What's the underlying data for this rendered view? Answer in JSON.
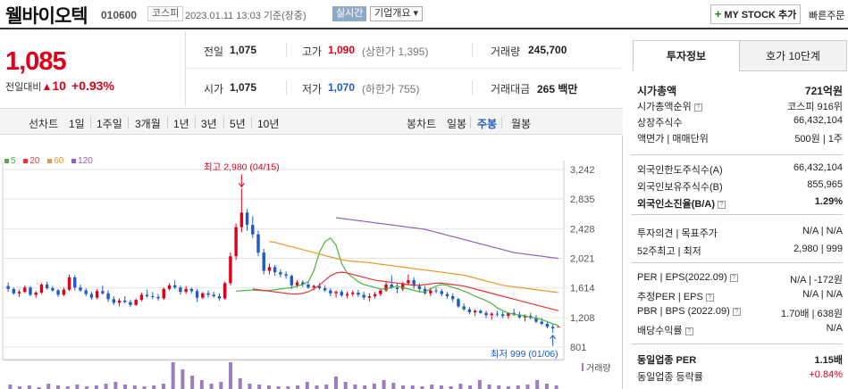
{
  "header": {
    "company_name": "웰바이오텍",
    "code": "010600",
    "market": "코스피",
    "datetime": "2023.01.11 13:03",
    "basis": "기준(장중)",
    "realtime_label": "실시간",
    "company_overview_label": "기업개요 ▾",
    "mystock_label": "MY STOCK 추가",
    "mystock_plus": "+",
    "quick_label": "빠른주문"
  },
  "price": {
    "current": "1,085",
    "diff_label": "전일대비",
    "diff_arrow": "▲",
    "diff_value": "10",
    "diff_pct": "+0.93%"
  },
  "stats": {
    "prev_close_label": "전일",
    "prev_close": "1,075",
    "high_label": "고가",
    "high": "1,090",
    "upper_limit": "(상한가 1,395)",
    "volume_label": "거래량",
    "volume": "245,700",
    "open_label": "시가",
    "open": "1,075",
    "low_label": "저가",
    "low": "1,070",
    "lower_limit": "(하한가 755)",
    "amount_label": "거래대금",
    "amount": "265 백만"
  },
  "period_bar": {
    "line_chart_label": "선차트",
    "line_periods": [
      "1일",
      "1주일",
      "3개월",
      "1년",
      "3년",
      "5년",
      "10년"
    ],
    "candle_label": "봉차트",
    "candle_periods": [
      "일봉",
      "주봉",
      "월봉"
    ],
    "selected_candle": "주봉"
  },
  "chart_data": {
    "type": "candlestick",
    "interval": "weekly",
    "legend": [
      "5",
      "20",
      "60",
      "120"
    ],
    "legend_colors": [
      "#49b43c",
      "#e8353a",
      "#f0952c",
      "#8d5fc2"
    ],
    "y_ticks": [
      3242,
      2835,
      2428,
      2021,
      1614,
      1208,
      801
    ],
    "ylim": [
      801,
      3242
    ],
    "annotations": {
      "high": "최고 2,980 (04/15)",
      "low": "최저 999 (01/06)"
    },
    "volume_label": "거래량",
    "ohlc": [
      [
        1640,
        1690,
        1560,
        1600
      ],
      [
        1600,
        1620,
        1520,
        1540
      ],
      [
        1540,
        1590,
        1490,
        1560
      ],
      [
        1560,
        1650,
        1540,
        1620
      ],
      [
        1620,
        1640,
        1500,
        1520
      ],
      [
        1520,
        1570,
        1480,
        1550
      ],
      [
        1550,
        1680,
        1530,
        1660
      ],
      [
        1660,
        1700,
        1590,
        1610
      ],
      [
        1610,
        1640,
        1560,
        1580
      ],
      [
        1580,
        1600,
        1490,
        1520
      ],
      [
        1520,
        1620,
        1500,
        1590
      ],
      [
        1590,
        1800,
        1570,
        1760
      ],
      [
        1760,
        1790,
        1580,
        1620
      ],
      [
        1620,
        1660,
        1560,
        1580
      ],
      [
        1580,
        1610,
        1500,
        1530
      ],
      [
        1530,
        1560,
        1450,
        1480
      ],
      [
        1480,
        1600,
        1460,
        1570
      ],
      [
        1570,
        1650,
        1520,
        1540
      ],
      [
        1540,
        1580,
        1420,
        1460
      ],
      [
        1460,
        1500,
        1380,
        1410
      ],
      [
        1410,
        1470,
        1360,
        1440
      ],
      [
        1440,
        1500,
        1400,
        1420
      ],
      [
        1420,
        1450,
        1350,
        1380
      ],
      [
        1380,
        1470,
        1370,
        1450
      ],
      [
        1450,
        1550,
        1430,
        1520
      ],
      [
        1520,
        1590,
        1480,
        1500
      ],
      [
        1500,
        1560,
        1460,
        1490
      ],
      [
        1490,
        1530,
        1440,
        1470
      ],
      [
        1470,
        1620,
        1450,
        1600
      ],
      [
        1600,
        1680,
        1580,
        1650
      ],
      [
        1650,
        1720,
        1600,
        1620
      ],
      [
        1620,
        1650,
        1520,
        1560
      ],
      [
        1560,
        1640,
        1530,
        1600
      ],
      [
        1600,
        1620,
        1540,
        1570
      ],
      [
        1570,
        1600,
        1420,
        1480
      ],
      [
        1480,
        1560,
        1460,
        1540
      ],
      [
        1540,
        1580,
        1480,
        1520
      ],
      [
        1520,
        1560,
        1480,
        1500
      ],
      [
        1500,
        1540,
        1440,
        1470
      ],
      [
        1470,
        1700,
        1450,
        1680
      ],
      [
        1680,
        2100,
        1650,
        2050
      ],
      [
        2050,
        2500,
        2000,
        2450
      ],
      [
        2450,
        2980,
        2380,
        2650
      ],
      [
        2650,
        2700,
        2400,
        2480
      ],
      [
        2480,
        2600,
        2300,
        2350
      ],
      [
        2350,
        2400,
        2050,
        2100
      ],
      [
        2100,
        2150,
        1800,
        1850
      ],
      [
        1850,
        1950,
        1800,
        1900
      ],
      [
        1900,
        1930,
        1780,
        1830
      ],
      [
        1830,
        1870,
        1760,
        1800
      ],
      [
        1800,
        1840,
        1740,
        1780
      ],
      [
        1780,
        1800,
        1600,
        1650
      ],
      [
        1650,
        1720,
        1620,
        1690
      ],
      [
        1690,
        1720,
        1630,
        1660
      ],
      [
        1660,
        1700,
        1600,
        1620
      ],
      [
        1620,
        1660,
        1580,
        1640
      ],
      [
        1640,
        1680,
        1590,
        1610
      ],
      [
        1610,
        1650,
        1560,
        1580
      ],
      [
        1580,
        1610,
        1500,
        1540
      ],
      [
        1540,
        1580,
        1480,
        1560
      ],
      [
        1560,
        1590,
        1490,
        1510
      ],
      [
        1510,
        1560,
        1470,
        1530
      ],
      [
        1530,
        1580,
        1500,
        1550
      ],
      [
        1550,
        1590,
        1490,
        1520
      ],
      [
        1520,
        1560,
        1450,
        1480
      ],
      [
        1480,
        1540,
        1430,
        1500
      ],
      [
        1500,
        1560,
        1470,
        1530
      ],
      [
        1530,
        1600,
        1500,
        1580
      ],
      [
        1580,
        1700,
        1560,
        1660
      ],
      [
        1660,
        1790,
        1600,
        1620
      ],
      [
        1620,
        1680,
        1540,
        1600
      ],
      [
        1600,
        1700,
        1570,
        1680
      ],
      [
        1680,
        1800,
        1650,
        1720
      ],
      [
        1720,
        1760,
        1600,
        1640
      ],
      [
        1640,
        1680,
        1560,
        1600
      ],
      [
        1600,
        1640,
        1520,
        1540
      ],
      [
        1540,
        1620,
        1500,
        1580
      ],
      [
        1580,
        1620,
        1540,
        1570
      ],
      [
        1570,
        1600,
        1500,
        1530
      ],
      [
        1530,
        1560,
        1470,
        1500
      ],
      [
        1500,
        1540,
        1420,
        1460
      ],
      [
        1460,
        1480,
        1340,
        1360
      ],
      [
        1360,
        1400,
        1300,
        1320
      ],
      [
        1320,
        1350,
        1250,
        1280
      ],
      [
        1280,
        1320,
        1230,
        1300
      ],
      [
        1300,
        1320,
        1260,
        1270
      ],
      [
        1270,
        1300,
        1200,
        1240
      ],
      [
        1240,
        1280,
        1180,
        1260
      ],
      [
        1260,
        1300,
        1220,
        1250
      ],
      [
        1250,
        1290,
        1200,
        1230
      ],
      [
        1230,
        1280,
        1190,
        1270
      ],
      [
        1270,
        1330,
        1230,
        1250
      ],
      [
        1250,
        1290,
        1190,
        1210
      ],
      [
        1210,
        1250,
        1150,
        1230
      ],
      [
        1230,
        1270,
        1180,
        1200
      ],
      [
        1200,
        1240,
        1130,
        1150
      ],
      [
        1150,
        1200,
        1100,
        1120
      ],
      [
        1120,
        1160,
        1060,
        1080
      ],
      [
        1080,
        1110,
        999,
        1060
      ],
      [
        1075,
        1090,
        1070,
        1085
      ]
    ],
    "ma": {
      "5": [
        1570,
        1575,
        1580,
        1585,
        1580,
        1575,
        1580,
        1590,
        1600,
        1610,
        1620,
        1640,
        1660,
        1700,
        1850,
        2100,
        2250,
        2300,
        2200,
        1950,
        1820,
        1760,
        1700,
        1660,
        1640,
        1620,
        1600,
        1600,
        1620,
        1640,
        1620,
        1600,
        1580,
        1560,
        1560,
        1600,
        1640,
        1660,
        1650,
        1620,
        1600,
        1570,
        1540,
        1500,
        1470,
        1440,
        1400,
        1340,
        1300,
        1270,
        1250,
        1240,
        1230,
        1210,
        1200,
        1180,
        1150,
        1120,
        1100
      ],
      "20": [
        1600,
        1590,
        1580,
        1570,
        1560,
        1550,
        1540,
        1530,
        1530,
        1540,
        1560,
        1600,
        1650,
        1720,
        1780,
        1820,
        1830,
        1820,
        1800,
        1780,
        1760,
        1740,
        1720,
        1710,
        1700,
        1690,
        1680,
        1670,
        1660,
        1650,
        1650,
        1660,
        1670,
        1680,
        1680,
        1670,
        1660,
        1650,
        1640,
        1620,
        1600,
        1580,
        1560,
        1540,
        1520,
        1500,
        1480,
        1460,
        1440,
        1420,
        1400,
        1380,
        1360,
        1340,
        1320,
        1300
      ],
      "60": [
        2250,
        2240,
        2220,
        2200,
        2180,
        2160,
        2140,
        2120,
        2100,
        2080,
        2060,
        2040,
        2020,
        2000,
        1990,
        1980,
        1975,
        1970,
        1960,
        1950,
        1940,
        1930,
        1920,
        1910,
        1900,
        1890,
        1880,
        1870,
        1860,
        1850,
        1840,
        1830,
        1820,
        1810,
        1800,
        1790,
        1770,
        1750,
        1730,
        1710,
        1690,
        1670,
        1650,
        1640,
        1630,
        1620,
        1610,
        1600,
        1590,
        1580,
        1570,
        1560,
        1550
      ],
      "120": [
        2580,
        2570,
        2560,
        2550,
        2540,
        2530,
        2520,
        2510,
        2500,
        2490,
        2480,
        2470,
        2460,
        2450,
        2440,
        2430,
        2420,
        2400,
        2380,
        2360,
        2340,
        2320,
        2300,
        2280,
        2260,
        2240,
        2220,
        2200,
        2180,
        2160,
        2140,
        2120,
        2100,
        2090,
        2080,
        2070,
        2060,
        2050,
        2040,
        2030,
        2020
      ]
    },
    "volume": [
      5,
      3,
      4,
      2,
      6,
      4,
      3,
      5,
      3,
      4,
      6,
      8,
      5,
      4,
      3,
      4,
      6,
      30,
      22,
      15,
      10,
      6,
      8,
      30,
      12,
      6,
      5,
      4,
      3,
      3,
      4,
      8,
      4,
      5,
      14,
      8,
      5,
      4,
      6,
      10,
      7,
      4,
      4,
      3,
      5,
      4,
      3,
      6,
      4,
      10,
      5,
      4,
      3,
      4,
      5,
      10,
      6,
      4
    ]
  },
  "right_panel": {
    "tab_invest": "투자정보",
    "tab_hoga": "호가 10단계",
    "market_cap_label": "시가총액",
    "market_cap": "721억원",
    "market_cap_rank_label": "시가총액순위",
    "market_cap_rank": "코스피 916위",
    "shares_label": "상장주식수",
    "shares": "66,432,104",
    "face_value_label": "액면가 | 매매단위",
    "face_value": "500원 | 1주",
    "foreign_limit_label": "외국인한도주식수(A)",
    "foreign_limit": "66,432,104",
    "foreign_hold_label": "외국인보유주식수(B)",
    "foreign_hold": "855,965",
    "foreign_rate_label": "외국인소진율(B/A)",
    "foreign_rate": "1.29%",
    "opinion_label": "투자의견 | 목표주가",
    "opinion": "N/A | N/A",
    "week52_label": "52주최고 | 최저",
    "week52": "2,980 | 999",
    "per_label": "PER | EPS(2022.09)",
    "per": "N/A | -172원",
    "est_per_label": "추정PER | EPS",
    "est_per": "N/A | N/A",
    "pbr_label": "PBR | BPS (2022.09)",
    "pbr": "1.70배 | 638원",
    "dividend_label": "배당수익률",
    "dividend": "N/A",
    "industry_per_label": "동일업종 PER",
    "industry_per": "1.15배",
    "industry_rate_label": "동일업종 등락률",
    "industry_rate": "+0.84%"
  }
}
